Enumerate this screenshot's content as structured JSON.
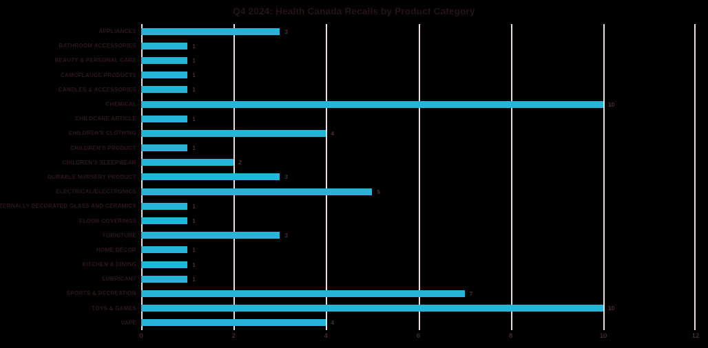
{
  "chart_data": {
    "type": "bar",
    "orientation": "horizontal",
    "title": "Q4 2024: Health Canada Recalls by Product Category",
    "categories": [
      "APPLIANCES",
      "BATHROOM ACCESSORIES",
      "BEAUTY & PERSONAL CARE",
      "CAMOFLAUGE PRODUCTS",
      "CANDLES & ACCESSORIES",
      "CHEMICAL",
      "CHILDCARE ARTICLE",
      "CHILDREN'S CLOTHING",
      "CHILDREN'S PRODUCT",
      "CHILDREN'S SLEEPWEAR",
      "DURABLE NURSERY PRODUCT",
      "ELECTRICAL/ELECTRONICS",
      "EXTERNALLY DECORATED GLASS AND CERAMICS",
      "FLOOR COVERINGS",
      "FURNITURE",
      "HOME DÉCOR",
      "KITCHEN & DINING",
      "LUBRICANT",
      "SPORTS & RECREATION",
      "TOYS & GAMES",
      "VAPE"
    ],
    "values": [
      3,
      1,
      1,
      1,
      1,
      10,
      1,
      4,
      1,
      2,
      3,
      5,
      1,
      1,
      3,
      1,
      1,
      1,
      7,
      10,
      4
    ],
    "xlabel": "",
    "ylabel": "",
    "xlim": [
      0,
      12
    ],
    "x_ticks": [
      0,
      2,
      4,
      6,
      8,
      10,
      12
    ],
    "grid": "vertical",
    "data_labels": true,
    "legend": "none"
  },
  "colors": {
    "background": "#000000",
    "bar": "#26B4D9",
    "gridline": "#EADEE7",
    "title_text": "#241319",
    "category_label_text": "#2C181E",
    "value_label_text": "#4B2F3D",
    "tick_label_text": "#5E3C4C"
  }
}
